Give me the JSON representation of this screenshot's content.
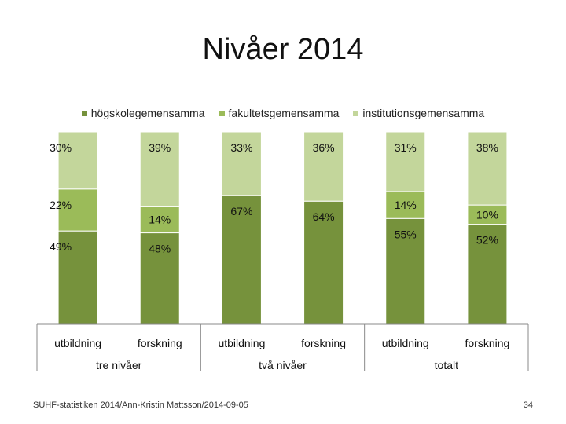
{
  "title": "Nivåer 2014",
  "colors": {
    "hogskole": "#76923c",
    "fakultet": "#9bbb59",
    "institution": "#c3d69b"
  },
  "chart_data": {
    "type": "bar",
    "stacked": true,
    "percent": true,
    "categories": [
      "utbildning",
      "forskning",
      "utbildning",
      "forskning",
      "utbildning",
      "forskning"
    ],
    "groups": [
      {
        "label": "tre nivåer",
        "span": 2
      },
      {
        "label": "två nivåer",
        "span": 2
      },
      {
        "label": "totalt",
        "span": 2
      }
    ],
    "series": [
      {
        "name": "högskolegemensamma",
        "key": "hogskole",
        "values": [
          49,
          48,
          67,
          64,
          55,
          52
        ]
      },
      {
        "name": "fakultetsgemensamma",
        "key": "fakultet",
        "values": [
          22,
          14,
          0,
          0,
          14,
          10
        ]
      },
      {
        "name": "institutionsgemensamma",
        "key": "institution",
        "values": [
          30,
          39,
          33,
          36,
          31,
          38
        ]
      }
    ],
    "data_labels": [
      [
        "49%",
        "48%",
        "67%",
        "64%",
        "55%",
        "52%"
      ],
      [
        "22%",
        "14%",
        "",
        "",
        "14%",
        "10%"
      ],
      [
        "30%",
        "39%",
        "33%",
        "36%",
        "31%",
        "38%"
      ]
    ],
    "ylim": [
      0,
      100
    ],
    "legend": "top"
  },
  "footer": {
    "source": "SUHF-statistiken 2014/Ann-Kristin Mattsson/2014-09-05",
    "page": "34"
  }
}
